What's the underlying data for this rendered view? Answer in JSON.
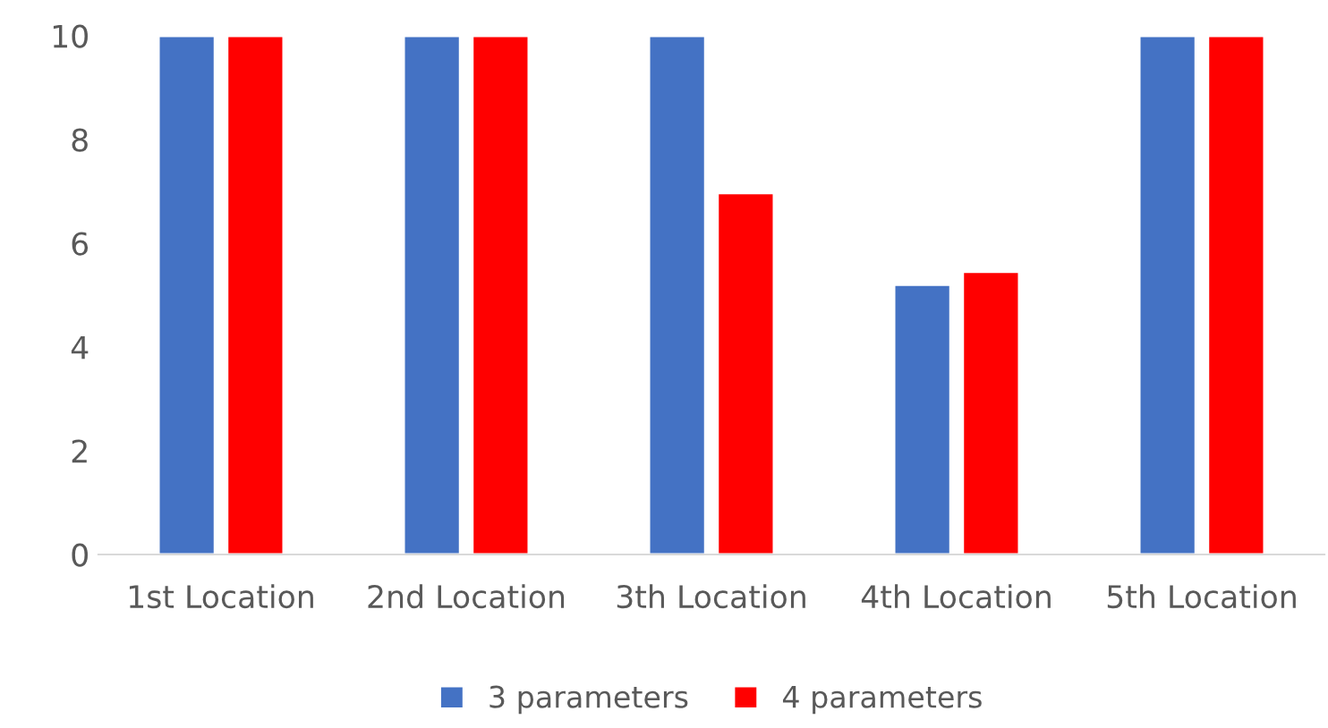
{
  "chart_data": {
    "type": "bar",
    "categories": [
      "1st Location",
      "2nd Location",
      "3th Location",
      "4th Location",
      "5th Location"
    ],
    "series": [
      {
        "name": "3 parameters",
        "color": "#4472c4",
        "values": [
          10,
          10,
          10,
          5.2,
          10
        ]
      },
      {
        "name": "4 parameters",
        "color": "#ff0000",
        "values": [
          10,
          10,
          6.97,
          5.45,
          10
        ]
      }
    ],
    "ylim": [
      0,
      10
    ],
    "yticks": [
      0,
      2,
      4,
      6,
      8,
      10
    ],
    "grid": false,
    "legend": "bottom"
  }
}
